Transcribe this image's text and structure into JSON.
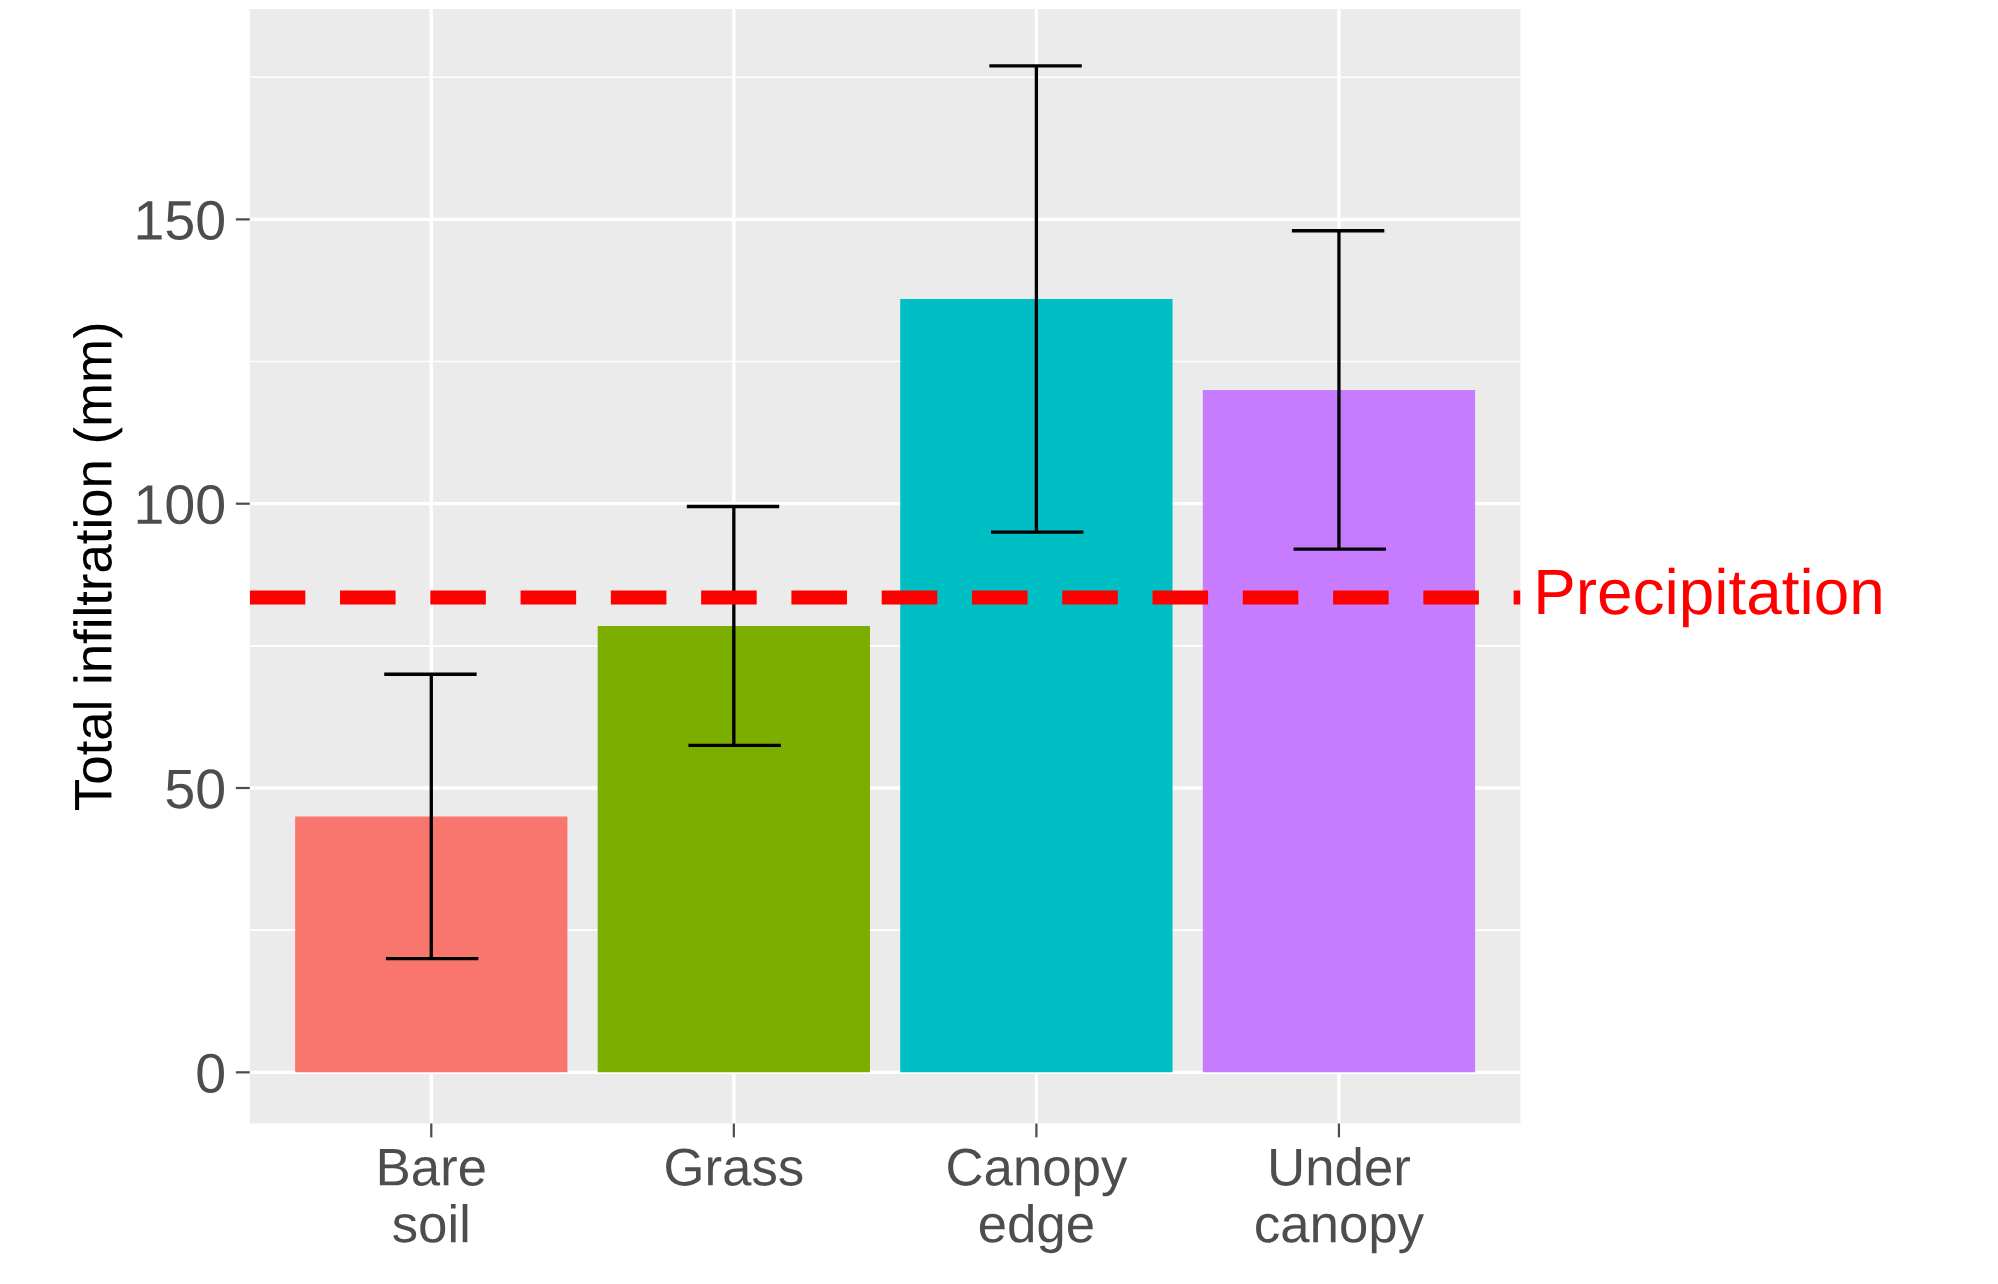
{
  "chart_data": {
    "type": "bar",
    "ylabel": "Total infiltration (mm)",
    "categories": [
      "Bare\nsoil",
      "Grass",
      "Canopy\nedge",
      "Under\ncanopy"
    ],
    "values": [
      45,
      78.5,
      136,
      120
    ],
    "colors": [
      "#f8766d",
      "#7cae00",
      "#00bfc4",
      "#c77cff"
    ],
    "errors": [
      [
        20,
        70
      ],
      [
        57.5,
        99.5
      ],
      [
        95,
        177
      ],
      [
        92,
        148
      ]
    ],
    "ylim": [
      -9,
      187
    ],
    "yticks": [
      0,
      50,
      100,
      150
    ],
    "grid": true,
    "ref_lines": [
      {
        "axis": "y",
        "value": 83.5,
        "label": "Precipitation",
        "color": "#ff0000",
        "line_style": "dashed"
      }
    ]
  }
}
